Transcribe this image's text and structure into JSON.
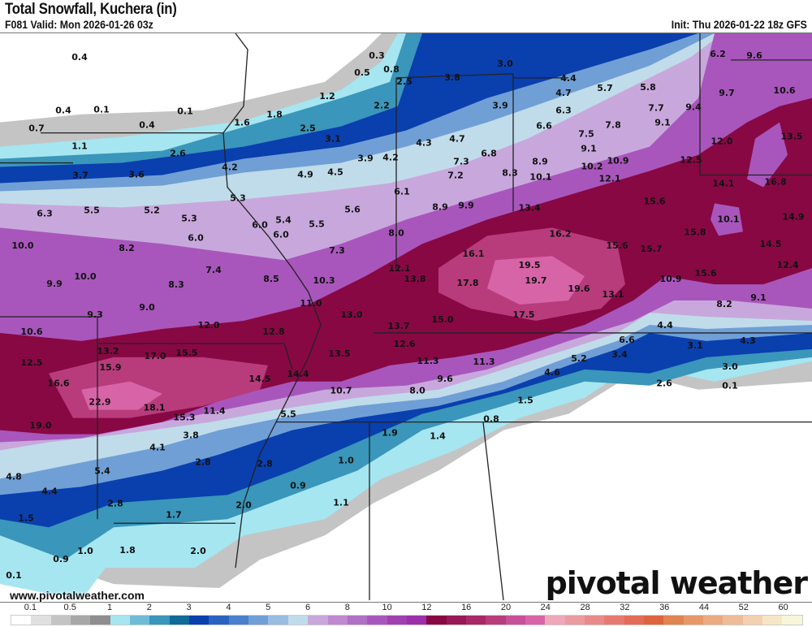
{
  "header": {
    "title": "Total Snowfall, Kuchera (in)",
    "valid": "F081 Valid: Mon 2026-01-26 03z",
    "init": "Init: Thu 2026-01-22 18z GFS"
  },
  "footer": {
    "website": "www.pivotalweather.com",
    "logo": "pivotal weather"
  },
  "legend": {
    "labels": [
      "0.1",
      "0.5",
      "1",
      "2",
      "3",
      "4",
      "5",
      "6",
      "8",
      "10",
      "12",
      "16",
      "20",
      "24",
      "28",
      "32",
      "36",
      "44",
      "52",
      "60"
    ],
    "colors": [
      "#ffffff",
      "#e0e0e0",
      "#c4c4c4",
      "#a8a8a8",
      "#8e8e8e",
      "#a6e6f0",
      "#6fbcd6",
      "#3a96ba",
      "#0f6b98",
      "#0a3fae",
      "#2a62c0",
      "#4a80cc",
      "#709fd6",
      "#98bde0",
      "#c0dcea",
      "#c8a8dc",
      "#c08ad0",
      "#b070c6",
      "#a856bc",
      "#a040b0",
      "#9c30aa",
      "#880844",
      "#981858",
      "#a82868",
      "#b83c7c",
      "#c85098",
      "#d864a8",
      "#eea8b8",
      "#ea9ca0",
      "#e88a8a",
      "#e67a70",
      "#e26c58",
      "#de6440",
      "#e08450",
      "#e69868",
      "#ebaa80",
      "#eebc96",
      "#f2d0b0",
      "#f6e6c8",
      "#f8f6da"
    ]
  },
  "map": {
    "point_values": [
      "0.4",
      "0.3",
      "0.8",
      "0.5",
      "2.5",
      "3.0",
      "6.2",
      "9.6",
      "0.4",
      "0.1",
      "0.1",
      "0.7",
      "0.4",
      "1.6",
      "1.8",
      "1.2",
      "2.2",
      "2.5",
      "3.1",
      "3.8",
      "4.4",
      "4.7",
      "5.7",
      "5.8",
      "10.6",
      "9.7",
      "3.9",
      "6.3",
      "7.7",
      "9.4",
      "9.1",
      "6.6",
      "7.8",
      "7.5",
      "1.1",
      "2.6",
      "3.9",
      "4.2",
      "4.3",
      "4.7",
      "6.8",
      "9.1",
      "12.0",
      "13.5",
      "3.7",
      "3.6",
      "4.2",
      "4.9",
      "4.5",
      "7.3",
      "7.2",
      "8.3",
      "8.9",
      "10.1",
      "10.2",
      "10.9",
      "12.1",
      "12.5",
      "14.1",
      "16.8",
      "5.3",
      "6.1",
      "15.6",
      "6.3",
      "5.5",
      "5.2",
      "5.3",
      "6.0",
      "5.4",
      "6.0",
      "5.5",
      "5.6",
      "8.9",
      "9.9",
      "13.4",
      "10.1",
      "14.9",
      "6.0",
      "8.0",
      "16.2",
      "15.6",
      "15.7",
      "15.8",
      "14.5",
      "10.0",
      "8.2",
      "7.3",
      "16.1",
      "12.4",
      "7.4",
      "19.5",
      "12.1",
      "10.0",
      "10.3",
      "8.5",
      "13.8",
      "17.8",
      "19.7",
      "19.6",
      "13.1",
      "10.9",
      "15.6",
      "9.9",
      "8.3",
      "9.1",
      "8.2",
      "11.0",
      "9.0",
      "13.0",
      "9.3",
      "15.0",
      "17.5",
      "12.0",
      "12.8",
      "10.6",
      "13.7",
      "4.4",
      "12.6",
      "6.6",
      "3.1",
      "4.3",
      "13.2",
      "17.0",
      "15.5",
      "13.5",
      "3.4",
      "11.3",
      "11.3",
      "12.5",
      "15.9",
      "14.4",
      "5.2",
      "3.0",
      "9.6",
      "4.6",
      "14.5",
      "2.6",
      "0.1",
      "16.6",
      "10.7",
      "8.0",
      "1.5",
      "22.9",
      "18.1",
      "11.4",
      "15.3",
      "5.5",
      "19.0",
      "0.8",
      "3.8",
      "1.9",
      "1.4",
      "4.1",
      "2.8",
      "2.8",
      "1.0",
      "5.4",
      "4.8",
      "0.9",
      "4.4",
      "2.8",
      "1.1",
      "1.5",
      "1.7",
      "2.0",
      "1.0",
      "0.9",
      "1.8",
      "2.0",
      "0.1"
    ]
  }
}
